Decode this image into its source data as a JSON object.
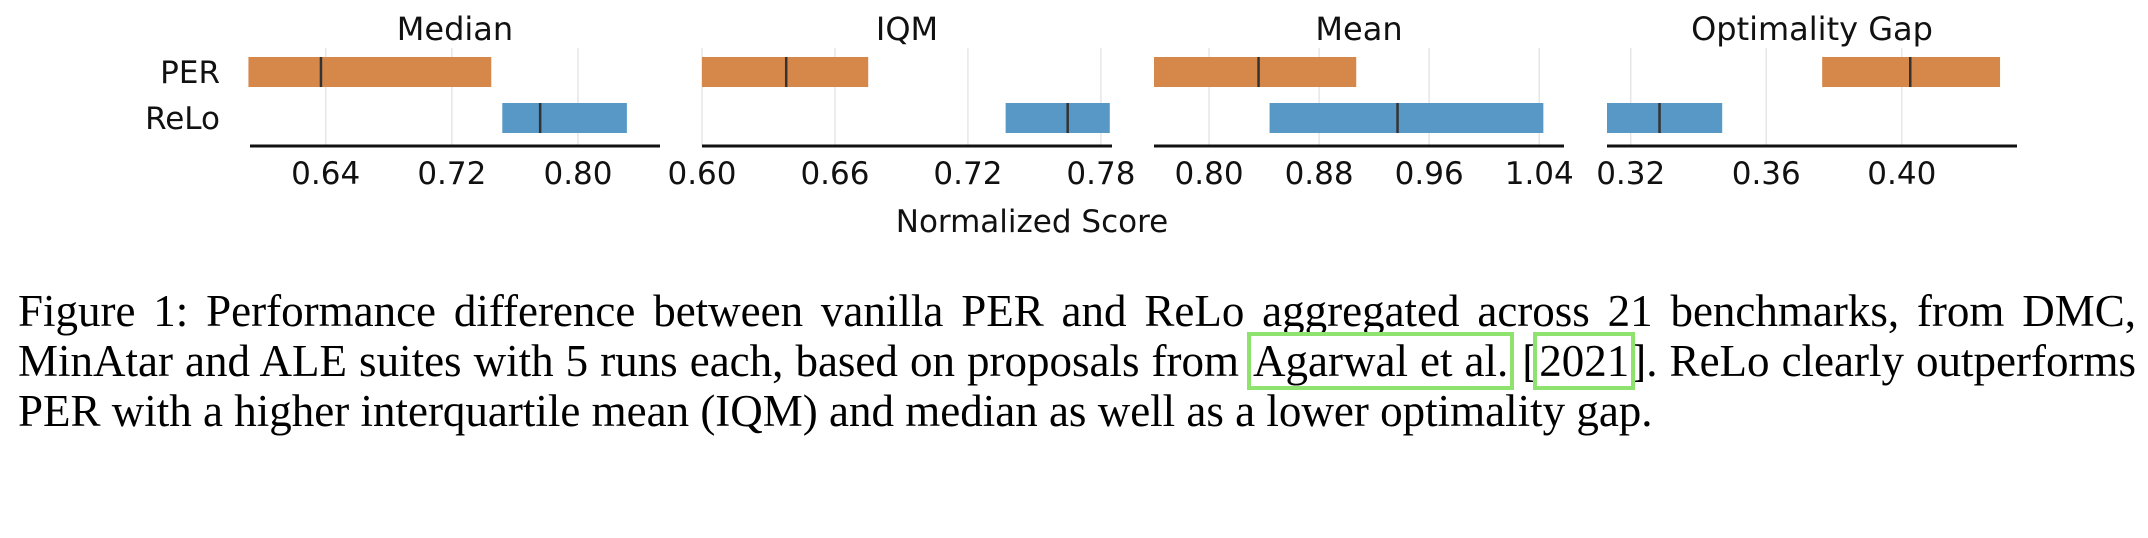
{
  "chart_data": {
    "type": "interval",
    "categories": [
      "PER",
      "ReLo"
    ],
    "xlabel": "Normalized Score",
    "colors": {
      "PER": "#d6884b",
      "ReLo": "#5898c6"
    },
    "panels": [
      {
        "title": "Median",
        "xlim": [
          0.592,
          0.852
        ],
        "ticks": [
          "0.64",
          "0.72",
          "0.80"
        ],
        "series": [
          {
            "name": "PER",
            "low": 0.591,
            "point": 0.637,
            "high": 0.745
          },
          {
            "name": "ReLo",
            "low": 0.752,
            "point": 0.776,
            "high": 0.831
          }
        ]
      },
      {
        "title": "IQM",
        "xlim": [
          0.6,
          0.785
        ],
        "ticks": [
          "0.60",
          "0.66",
          "0.72",
          "0.78"
        ],
        "series": [
          {
            "name": "PER",
            "low": 0.6,
            "point": 0.638,
            "high": 0.675
          },
          {
            "name": "ReLo",
            "low": 0.737,
            "point": 0.765,
            "high": 0.784
          }
        ]
      },
      {
        "title": "Mean",
        "xlim": [
          0.76,
          1.058
        ],
        "ticks": [
          "0.80",
          "0.88",
          "0.96",
          "1.04"
        ],
        "series": [
          {
            "name": "PER",
            "low": 0.76,
            "point": 0.836,
            "high": 0.907
          },
          {
            "name": "ReLo",
            "low": 0.844,
            "point": 0.937,
            "high": 1.043
          }
        ]
      },
      {
        "title": "Optimality Gap",
        "xlim": [
          0.313,
          0.434
        ],
        "ticks": [
          "0.32",
          "0.36",
          "0.40"
        ],
        "series": [
          {
            "name": "PER",
            "low": 0.3765,
            "point": 0.4025,
            "high": 0.429
          },
          {
            "name": "ReLo",
            "low": 0.313,
            "point": 0.3285,
            "high": 0.347
          }
        ]
      }
    ]
  },
  "caption": {
    "part1": "Figure 1: Performance difference between vanilla PER and ReLo aggregated across 21 benchmarks, from DMC, MinAtar and ALE suites with 5 runs each, based on proposals from ",
    "cite_authors": "Agarwal et al.",
    "bracket_open": " [",
    "cite_year": "2021",
    "part2": "]. ReLo clearly outperforms PER with a higher interquartile mean (IQM) and median as well as a lower optimality gap."
  }
}
